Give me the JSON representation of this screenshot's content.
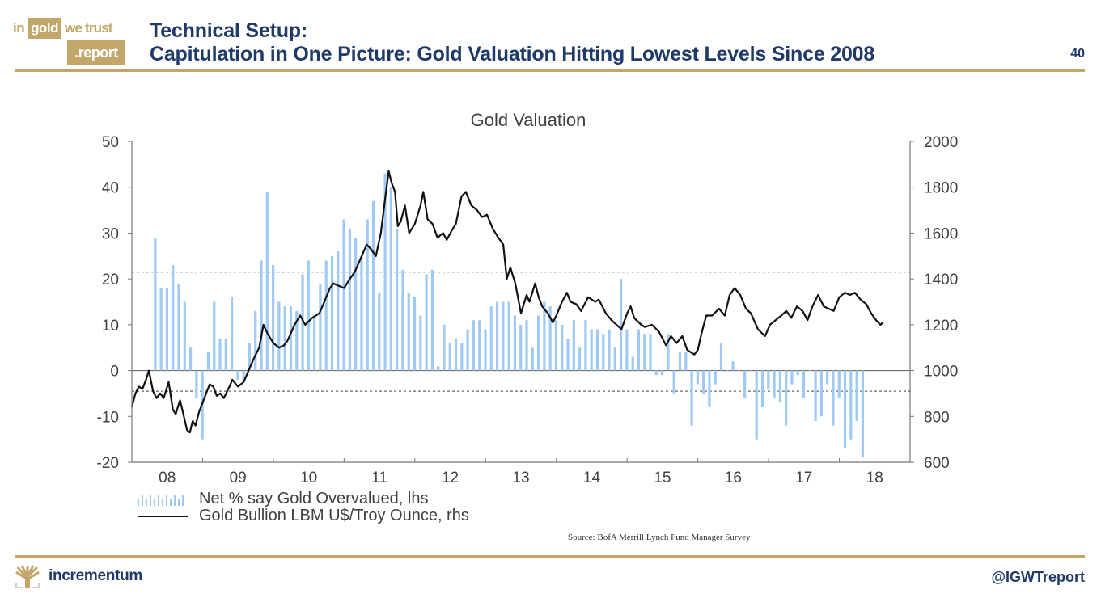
{
  "header": {
    "logo": {
      "word_in": "in",
      "word_gold": "gold",
      "word_we_trust": "we trust",
      "word_report": ".report"
    },
    "title_line1": "Technical Setup:",
    "title_line2": "Capitulation in One Picture: Gold Valuation Hitting Lowest Levels Since 2008",
    "page_number": "40"
  },
  "footer": {
    "brand": "incrementum",
    "handle": "@IGWTreport",
    "source": "Source: BofA Merrill Lynch Fund Manager Survey"
  },
  "colors": {
    "brand_gold": "#c2a66a",
    "title_navy": "#1f3a68",
    "bar_blue": "#9fcaf5",
    "line_black": "#111111"
  },
  "chart_data": {
    "type": "bar+line",
    "title": "Gold Valuation",
    "xlabel": "",
    "ylabel_left": "",
    "ylabel_right": "",
    "x_range": [
      2008.0,
      2019.0
    ],
    "x_ticks": [
      "08",
      "09",
      "10",
      "11",
      "12",
      "13",
      "14",
      "15",
      "16",
      "17",
      "18"
    ],
    "ylim_left": [
      -20,
      50
    ],
    "yticks_left": [
      "50",
      "40",
      "30",
      "20",
      "10",
      "0",
      "-10",
      "-20"
    ],
    "ylim_right": [
      600,
      2000
    ],
    "yticks_right": [
      "2000",
      "1800",
      "1600",
      "1400",
      "1200",
      "1000",
      "800",
      "600"
    ],
    "reference_lines_left": [
      21.5,
      -4.5
    ],
    "legend": {
      "position": "bottom-left",
      "entries": [
        "Net % say Gold Overvalued, lhs",
        "Gold Bullion LBM U$/Troy Ounce, rhs"
      ]
    },
    "series": [
      {
        "name": "Net % say Gold Overvalued, lhs",
        "type": "bar",
        "axis": "left",
        "start": 2008.33,
        "step_months": 1,
        "values": [
          29,
          18,
          18,
          23,
          19,
          15,
          5,
          -6,
          -15,
          4,
          15,
          7,
          7,
          16,
          -2,
          -2,
          6,
          13,
          24,
          39,
          23,
          15,
          14,
          14,
          13,
          21,
          24,
          12,
          19,
          24,
          25,
          26,
          33,
          31,
          29,
          25,
          33,
          37,
          17,
          43,
          40,
          31,
          22,
          17,
          16,
          12,
          21,
          22,
          1,
          10,
          6,
          7,
          6,
          9,
          11,
          11,
          9,
          14,
          15,
          15,
          15,
          12,
          10,
          11,
          5,
          12,
          15,
          14,
          11,
          10,
          7,
          11,
          5,
          11,
          9,
          9,
          8,
          9,
          5,
          20,
          9,
          3,
          9,
          8,
          8,
          -1,
          -1,
          8,
          -5,
          4,
          4,
          -12,
          -3,
          -5,
          -8,
          -3,
          6,
          0,
          2,
          0,
          -6,
          0,
          -15,
          -8,
          -4,
          -6,
          -7,
          -12,
          -3,
          -1,
          -6,
          0,
          -11,
          -10,
          -3,
          -12,
          -6,
          -17,
          -15,
          -11,
          -19
        ]
      },
      {
        "name": "Gold Bullion LBM U$/Troy Ounce, rhs",
        "type": "line",
        "axis": "right",
        "points": [
          [
            2008.0,
            840
          ],
          [
            2008.05,
            900
          ],
          [
            2008.1,
            930
          ],
          [
            2008.15,
            920
          ],
          [
            2008.2,
            960
          ],
          [
            2008.24,
            1000
          ],
          [
            2008.3,
            910
          ],
          [
            2008.35,
            880
          ],
          [
            2008.4,
            900
          ],
          [
            2008.45,
            880
          ],
          [
            2008.52,
            950
          ],
          [
            2008.58,
            830
          ],
          [
            2008.62,
            810
          ],
          [
            2008.68,
            870
          ],
          [
            2008.72,
            820
          ],
          [
            2008.78,
            740
          ],
          [
            2008.82,
            730
          ],
          [
            2008.86,
            780
          ],
          [
            2008.9,
            760
          ],
          [
            2008.95,
            820
          ],
          [
            2009.0,
            860
          ],
          [
            2009.05,
            900
          ],
          [
            2009.1,
            940
          ],
          [
            2009.15,
            930
          ],
          [
            2009.2,
            890
          ],
          [
            2009.25,
            900
          ],
          [
            2009.3,
            880
          ],
          [
            2009.38,
            930
          ],
          [
            2009.42,
            960
          ],
          [
            2009.5,
            930
          ],
          [
            2009.58,
            950
          ],
          [
            2009.65,
            1000
          ],
          [
            2009.72,
            1050
          ],
          [
            2009.8,
            1100
          ],
          [
            2009.86,
            1200
          ],
          [
            2009.92,
            1160
          ],
          [
            2010.0,
            1120
          ],
          [
            2010.08,
            1100
          ],
          [
            2010.15,
            1110
          ],
          [
            2010.2,
            1130
          ],
          [
            2010.3,
            1200
          ],
          [
            2010.38,
            1240
          ],
          [
            2010.45,
            1200
          ],
          [
            2010.55,
            1230
          ],
          [
            2010.65,
            1250
          ],
          [
            2010.72,
            1300
          ],
          [
            2010.8,
            1360
          ],
          [
            2010.85,
            1380
          ],
          [
            2010.92,
            1370
          ],
          [
            2011.0,
            1360
          ],
          [
            2011.08,
            1400
          ],
          [
            2011.15,
            1430
          ],
          [
            2011.25,
            1500
          ],
          [
            2011.32,
            1550
          ],
          [
            2011.38,
            1530
          ],
          [
            2011.45,
            1500
          ],
          [
            2011.52,
            1600
          ],
          [
            2011.58,
            1750
          ],
          [
            2011.63,
            1870
          ],
          [
            2011.67,
            1820
          ],
          [
            2011.72,
            1780
          ],
          [
            2011.76,
            1630
          ],
          [
            2011.8,
            1650
          ],
          [
            2011.86,
            1720
          ],
          [
            2011.92,
            1600
          ],
          [
            2012.0,
            1640
          ],
          [
            2012.08,
            1720
          ],
          [
            2012.12,
            1780
          ],
          [
            2012.18,
            1660
          ],
          [
            2012.25,
            1640
          ],
          [
            2012.32,
            1580
          ],
          [
            2012.4,
            1600
          ],
          [
            2012.45,
            1570
          ],
          [
            2012.52,
            1610
          ],
          [
            2012.58,
            1640
          ],
          [
            2012.66,
            1760
          ],
          [
            2012.72,
            1780
          ],
          [
            2012.8,
            1720
          ],
          [
            2012.88,
            1700
          ],
          [
            2012.95,
            1670
          ],
          [
            2013.02,
            1680
          ],
          [
            2013.1,
            1620
          ],
          [
            2013.18,
            1580
          ],
          [
            2013.25,
            1550
          ],
          [
            2013.3,
            1400
          ],
          [
            2013.35,
            1450
          ],
          [
            2013.42,
            1380
          ],
          [
            2013.5,
            1250
          ],
          [
            2013.58,
            1330
          ],
          [
            2013.62,
            1300
          ],
          [
            2013.7,
            1380
          ],
          [
            2013.75,
            1320
          ],
          [
            2013.8,
            1280
          ],
          [
            2013.88,
            1250
          ],
          [
            2013.95,
            1210
          ],
          [
            2014.0,
            1240
          ],
          [
            2014.08,
            1300
          ],
          [
            2014.15,
            1340
          ],
          [
            2014.2,
            1300
          ],
          [
            2014.28,
            1290
          ],
          [
            2014.35,
            1260
          ],
          [
            2014.45,
            1320
          ],
          [
            2014.55,
            1300
          ],
          [
            2014.6,
            1310
          ],
          [
            2014.7,
            1250
          ],
          [
            2014.78,
            1220
          ],
          [
            2014.85,
            1200
          ],
          [
            2014.92,
            1180
          ],
          [
            2015.0,
            1250
          ],
          [
            2015.05,
            1280
          ],
          [
            2015.1,
            1230
          ],
          [
            2015.2,
            1200
          ],
          [
            2015.25,
            1190
          ],
          [
            2015.35,
            1200
          ],
          [
            2015.45,
            1170
          ],
          [
            2015.55,
            1110
          ],
          [
            2015.62,
            1150
          ],
          [
            2015.7,
            1120
          ],
          [
            2015.78,
            1150
          ],
          [
            2015.85,
            1090
          ],
          [
            2015.95,
            1070
          ],
          [
            2016.0,
            1090
          ],
          [
            2016.05,
            1160
          ],
          [
            2016.12,
            1240
          ],
          [
            2016.2,
            1240
          ],
          [
            2016.3,
            1270
          ],
          [
            2016.38,
            1240
          ],
          [
            2016.45,
            1330
          ],
          [
            2016.52,
            1360
          ],
          [
            2016.6,
            1330
          ],
          [
            2016.68,
            1270
          ],
          [
            2016.75,
            1250
          ],
          [
            2016.85,
            1180
          ],
          [
            2016.95,
            1150
          ],
          [
            2017.02,
            1200
          ],
          [
            2017.1,
            1220
          ],
          [
            2017.18,
            1240
          ],
          [
            2017.25,
            1260
          ],
          [
            2017.32,
            1230
          ],
          [
            2017.4,
            1280
          ],
          [
            2017.48,
            1260
          ],
          [
            2017.55,
            1220
          ],
          [
            2017.62,
            1280
          ],
          [
            2017.7,
            1330
          ],
          [
            2017.78,
            1280
          ],
          [
            2017.85,
            1270
          ],
          [
            2017.92,
            1260
          ],
          [
            2018.0,
            1320
          ],
          [
            2018.08,
            1340
          ],
          [
            2018.15,
            1330
          ],
          [
            2018.22,
            1340
          ],
          [
            2018.3,
            1310
          ],
          [
            2018.38,
            1290
          ],
          [
            2018.45,
            1250
          ],
          [
            2018.52,
            1220
          ],
          [
            2018.58,
            1200
          ],
          [
            2018.62,
            1210
          ]
        ]
      }
    ]
  }
}
